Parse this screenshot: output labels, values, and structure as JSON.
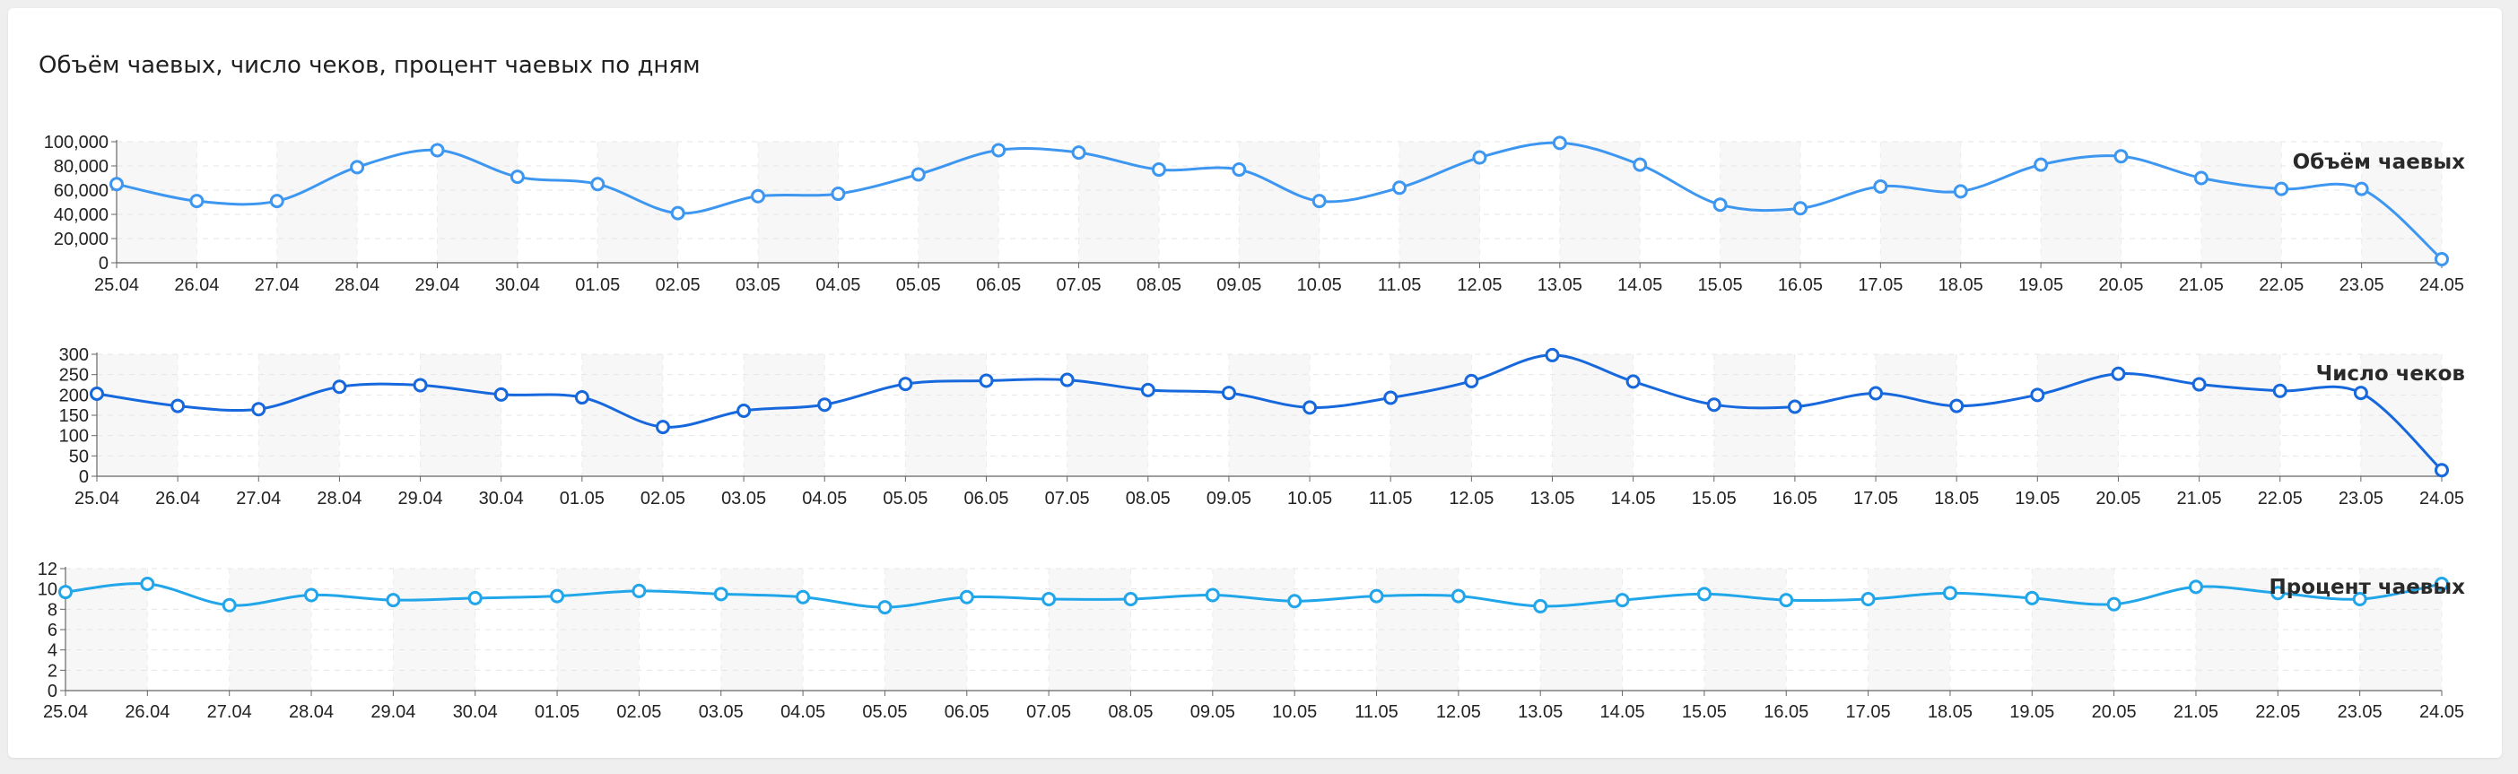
{
  "title": "Объём чаевых, число чеков, процент чаевых по дням",
  "colors": {
    "chart1": "#3d97f0",
    "chart2": "#1668dc",
    "chart3": "#22a6ea"
  },
  "chart_data": [
    {
      "type": "line",
      "title": "Объём чаевых",
      "categories": [
        "25.04",
        "26.04",
        "27.04",
        "28.04",
        "29.04",
        "30.04",
        "01.05",
        "02.05",
        "03.05",
        "04.05",
        "05.05",
        "06.05",
        "07.05",
        "08.05",
        "09.05",
        "10.05",
        "11.05",
        "12.05",
        "13.05",
        "14.05",
        "15.05",
        "16.05",
        "17.05",
        "18.05",
        "19.05",
        "20.05",
        "21.05",
        "22.05",
        "23.05",
        "24.05"
      ],
      "values": [
        65000,
        51000,
        51000,
        79000,
        93000,
        71000,
        65000,
        41000,
        55000,
        57000,
        73000,
        93000,
        91000,
        77000,
        77000,
        51000,
        62000,
        87000,
        99000,
        81000,
        48000,
        45000,
        63000,
        59000,
        81000,
        88000,
        70000,
        61000,
        61000,
        3000
      ],
      "ylim": [
        0,
        100000
      ],
      "yticks": [
        "0",
        "20,000",
        "40,000",
        "60,000",
        "80,000",
        "100,000"
      ],
      "legend": "top-right",
      "grid": true
    },
    {
      "type": "line",
      "title": "Число чеков",
      "categories": [
        "25.04",
        "26.04",
        "27.04",
        "28.04",
        "29.04",
        "30.04",
        "01.05",
        "02.05",
        "03.05",
        "04.05",
        "05.05",
        "06.05",
        "07.05",
        "08.05",
        "09.05",
        "10.05",
        "11.05",
        "12.05",
        "13.05",
        "14.05",
        "15.05",
        "16.05",
        "17.05",
        "18.05",
        "19.05",
        "20.05",
        "21.05",
        "22.05",
        "23.05",
        "24.05"
      ],
      "values": [
        203,
        173,
        165,
        220,
        224,
        201,
        194,
        121,
        161,
        176,
        227,
        235,
        237,
        212,
        205,
        169,
        193,
        234,
        298,
        233,
        176,
        171,
        204,
        173,
        200,
        252,
        226,
        210,
        205,
        15
      ],
      "ylim": [
        0,
        300
      ],
      "yticks": [
        "0",
        "50",
        "100",
        "150",
        "200",
        "250",
        "300"
      ],
      "legend": "top-right",
      "grid": true
    },
    {
      "type": "line",
      "title": "Процент чаевых",
      "categories": [
        "25.04",
        "26.04",
        "27.04",
        "28.04",
        "29.04",
        "30.04",
        "01.05",
        "02.05",
        "03.05",
        "04.05",
        "05.05",
        "06.05",
        "07.05",
        "08.05",
        "09.05",
        "10.05",
        "11.05",
        "12.05",
        "13.05",
        "14.05",
        "15.05",
        "16.05",
        "17.05",
        "18.05",
        "19.05",
        "20.05",
        "21.05",
        "22.05",
        "23.05",
        "24.05"
      ],
      "values": [
        9.7,
        10.5,
        8.4,
        9.4,
        8.9,
        9.1,
        9.3,
        9.8,
        9.5,
        9.2,
        8.2,
        9.2,
        9.0,
        9.0,
        9.4,
        8.8,
        9.3,
        9.3,
        8.3,
        8.9,
        9.5,
        8.9,
        9.0,
        9.6,
        9.1,
        8.5,
        10.2,
        9.6,
        9.0,
        10.5
      ],
      "ylim": [
        0,
        12
      ],
      "yticks": [
        "0",
        "2",
        "4",
        "6",
        "8",
        "10",
        "12"
      ],
      "legend": "top-right",
      "grid": true
    }
  ]
}
